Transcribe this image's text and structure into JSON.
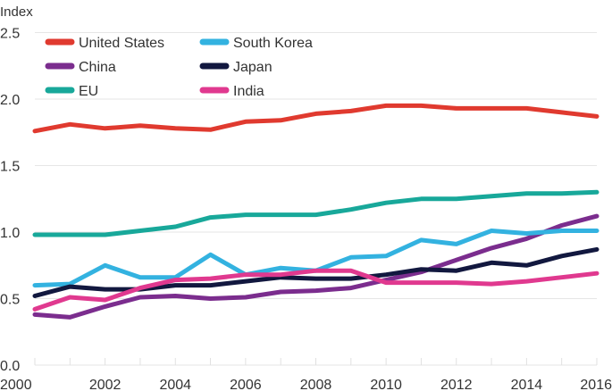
{
  "chart_data": {
    "type": "line",
    "title": "",
    "xlabel": "",
    "ylabel": "Index",
    "ylim": [
      0,
      2.5
    ],
    "xlim": [
      2000,
      2016
    ],
    "yticks": [
      0.0,
      0.5,
      1.0,
      1.5,
      2.0,
      2.5
    ],
    "ytick_labels": [
      "0.0",
      "0.5",
      "1.0",
      "1.5",
      "2.0",
      "2.5"
    ],
    "xticks": [
      2000,
      2002,
      2004,
      2006,
      2008,
      2010,
      2012,
      2014,
      2016
    ],
    "xtick_labels": [
      "2000",
      "2002",
      "2004",
      "2006",
      "2008",
      "2010",
      "2012",
      "2014",
      "2016"
    ],
    "grid": "horizontal",
    "legend_position": "top-left",
    "x": [
      2000,
      2001,
      2002,
      2003,
      2004,
      2005,
      2006,
      2007,
      2008,
      2009,
      2010,
      2011,
      2012,
      2013,
      2014,
      2015,
      2016
    ],
    "series": [
      {
        "name": "United States",
        "color": "#e03a2f",
        "values": [
          1.76,
          1.81,
          1.78,
          1.8,
          1.78,
          1.77,
          1.83,
          1.84,
          1.89,
          1.91,
          1.95,
          1.95,
          1.93,
          1.93,
          1.93,
          1.9,
          1.87
        ]
      },
      {
        "name": "China",
        "color": "#7b2d8e",
        "values": [
          0.38,
          0.36,
          0.44,
          0.51,
          0.52,
          0.5,
          0.51,
          0.55,
          0.56,
          0.58,
          0.64,
          0.7,
          0.79,
          0.88,
          0.95,
          1.05,
          1.12
        ]
      },
      {
        "name": "EU",
        "color": "#18a89a",
        "values": [
          0.98,
          0.98,
          0.98,
          1.01,
          1.04,
          1.11,
          1.13,
          1.13,
          1.13,
          1.17,
          1.22,
          1.25,
          1.25,
          1.27,
          1.29,
          1.29,
          1.3
        ]
      },
      {
        "name": "South Korea",
        "color": "#33b2e0",
        "values": [
          0.6,
          0.61,
          0.75,
          0.66,
          0.66,
          0.83,
          0.68,
          0.73,
          0.71,
          0.81,
          0.82,
          0.94,
          0.91,
          1.01,
          0.99,
          1.01,
          1.01
        ]
      },
      {
        "name": "Japan",
        "color": "#12183f",
        "values": [
          0.52,
          0.59,
          0.57,
          0.57,
          0.6,
          0.6,
          0.63,
          0.66,
          0.65,
          0.65,
          0.68,
          0.72,
          0.71,
          0.77,
          0.75,
          0.82,
          0.87
        ]
      },
      {
        "name": "India",
        "color": "#e0398f",
        "values": [
          0.42,
          0.51,
          0.49,
          0.58,
          0.64,
          0.65,
          0.68,
          0.68,
          0.71,
          0.71,
          0.62,
          0.62,
          0.62,
          0.61,
          0.63,
          0.66,
          0.69
        ]
      }
    ]
  }
}
